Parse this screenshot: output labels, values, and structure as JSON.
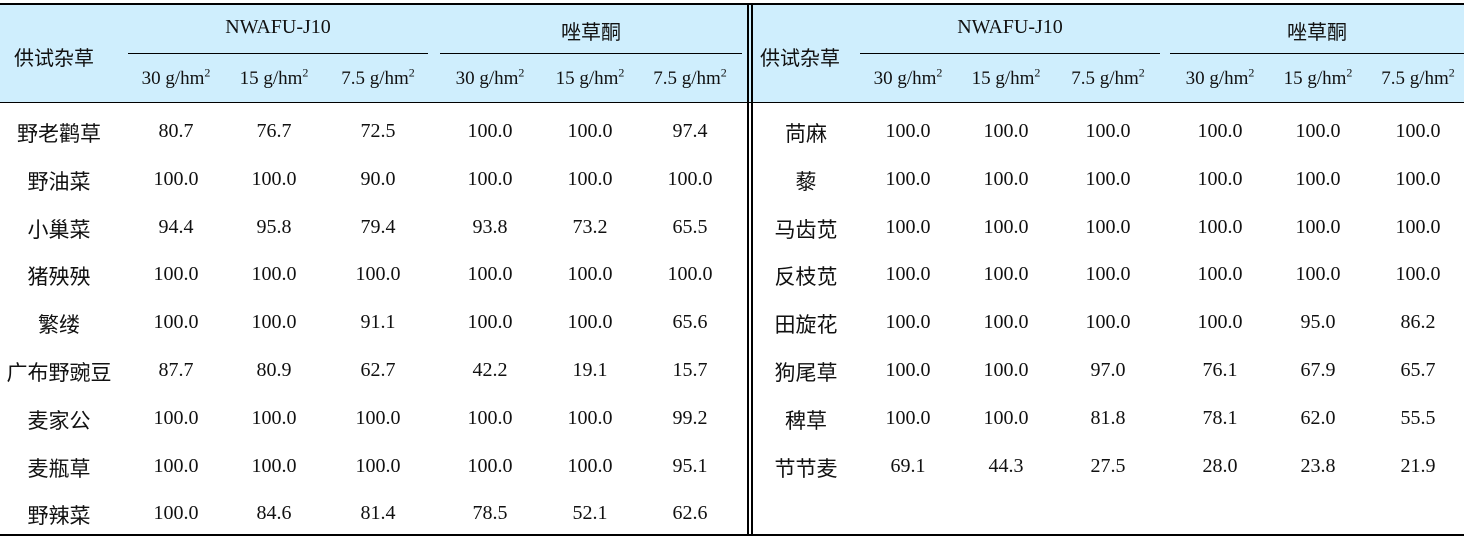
{
  "header": {
    "weed_col": "供试杂草",
    "groups": [
      "NWAFU-J10",
      "唑草酮"
    ],
    "doses": [
      {
        "num": "30 g/hm",
        "sup": "2"
      },
      {
        "num": "15 g/hm",
        "sup": "2"
      },
      {
        "num": "7.5 g/hm",
        "sup": "2"
      }
    ]
  },
  "left": [
    {
      "weed": "野老鹳草",
      "values": [
        "80.7",
        "76.7",
        "72.5",
        "100.0",
        "100.0",
        "97.4"
      ]
    },
    {
      "weed": "野油菜",
      "values": [
        "100.0",
        "100.0",
        "90.0",
        "100.0",
        "100.0",
        "100.0"
      ]
    },
    {
      "weed": "小巢菜",
      "values": [
        "94.4",
        "95.8",
        "79.4",
        "93.8",
        "73.2",
        "65.5"
      ]
    },
    {
      "weed": "猪殃殃",
      "values": [
        "100.0",
        "100.0",
        "100.0",
        "100.0",
        "100.0",
        "100.0"
      ]
    },
    {
      "weed": "繁缕",
      "values": [
        "100.0",
        "100.0",
        "91.1",
        "100.0",
        "100.0",
        "65.6"
      ]
    },
    {
      "weed": "广布野豌豆",
      "values": [
        "87.7",
        "80.9",
        "62.7",
        "42.2",
        "19.1",
        "15.7"
      ]
    },
    {
      "weed": "麦家公",
      "values": [
        "100.0",
        "100.0",
        "100.0",
        "100.0",
        "100.0",
        "99.2"
      ]
    },
    {
      "weed": "麦瓶草",
      "values": [
        "100.0",
        "100.0",
        "100.0",
        "100.0",
        "100.0",
        "95.1"
      ]
    },
    {
      "weed": "野辣菜",
      "values": [
        "100.0",
        "84.6",
        "81.4",
        "78.5",
        "52.1",
        "62.6"
      ]
    }
  ],
  "right": [
    {
      "weed": "苘麻",
      "values": [
        "100.0",
        "100.0",
        "100.0",
        "100.0",
        "100.0",
        "100.0"
      ]
    },
    {
      "weed": "藜",
      "values": [
        "100.0",
        "100.0",
        "100.0",
        "100.0",
        "100.0",
        "100.0"
      ]
    },
    {
      "weed": "马齿苋",
      "values": [
        "100.0",
        "100.0",
        "100.0",
        "100.0",
        "100.0",
        "100.0"
      ]
    },
    {
      "weed": "反枝苋",
      "values": [
        "100.0",
        "100.0",
        "100.0",
        "100.0",
        "100.0",
        "100.0"
      ]
    },
    {
      "weed": "田旋花",
      "values": [
        "100.0",
        "100.0",
        "100.0",
        "100.0",
        "95.0",
        "86.2"
      ]
    },
    {
      "weed": "狗尾草",
      "values": [
        "100.0",
        "100.0",
        "97.0",
        "76.1",
        "67.9",
        "65.7"
      ]
    },
    {
      "weed": "稗草",
      "values": [
        "100.0",
        "100.0",
        "81.8",
        "78.1",
        "62.0",
        "55.5"
      ]
    },
    {
      "weed": "节节麦",
      "values": [
        "69.1",
        "44.3",
        "27.5",
        "28.0",
        "23.8",
        "21.9"
      ]
    }
  ]
}
